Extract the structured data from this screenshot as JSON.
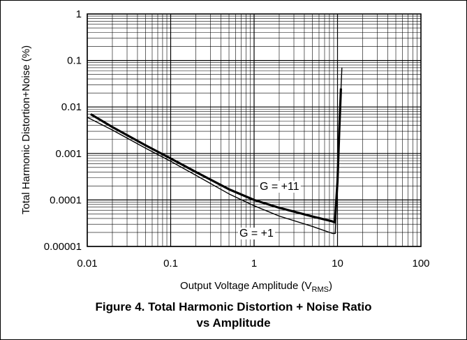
{
  "chart_data": {
    "type": "line",
    "title": "Figure 4. Total Harmonic Distortion + Noise Ratio vs Amplitude",
    "title_lines": [
      "Figure 4. Total Harmonic Distortion + Noise Ratio",
      "vs Amplitude"
    ],
    "xlabel": "Output Voltage Amplitude (V",
    "xlabel_sub": "RMS",
    "xlabel_end": ")",
    "ylabel": "Total Harmonic Distortion+Noise (%)",
    "x_scale": "log",
    "y_scale": "log",
    "xlim": [
      0.01,
      100
    ],
    "ylim": [
      1e-05,
      1
    ],
    "grid": true,
    "x_tick_labels": [
      "0.01",
      "0.1",
      "1",
      "10",
      "100"
    ],
    "y_tick_labels": [
      "1",
      "0.1",
      "0.01",
      "0.001",
      "0.0001",
      "0.00001"
    ],
    "annotations": [
      "G = +11",
      "G = +1"
    ],
    "series": [
      {
        "name": "G = +11",
        "color": "#000000",
        "x": [
          0.011,
          0.02,
          0.05,
          0.1,
          0.2,
          0.5,
          1,
          2,
          5,
          8.5,
          9.3,
          10,
          10.5,
          11
        ],
        "y": [
          0.007,
          0.0037,
          0.0015,
          0.00078,
          0.0004,
          0.00017,
          0.0001,
          6.8e-05,
          4.4e-05,
          3.5e-05,
          3.3e-05,
          0.00025,
          0.003,
          0.025
        ]
      },
      {
        "name": "G = +1",
        "color": "#000000",
        "x": [
          0.01,
          0.02,
          0.05,
          0.1,
          0.2,
          0.5,
          1,
          2,
          5,
          8.7,
          9.4,
          10,
          10.6,
          11.3
        ],
        "y": [
          0.006,
          0.0032,
          0.0013,
          0.00068,
          0.00034,
          0.000135,
          7.5e-05,
          4.5e-05,
          2.7e-05,
          1.9e-05,
          1.9e-05,
          0.0003,
          0.005,
          0.07
        ]
      }
    ]
  }
}
